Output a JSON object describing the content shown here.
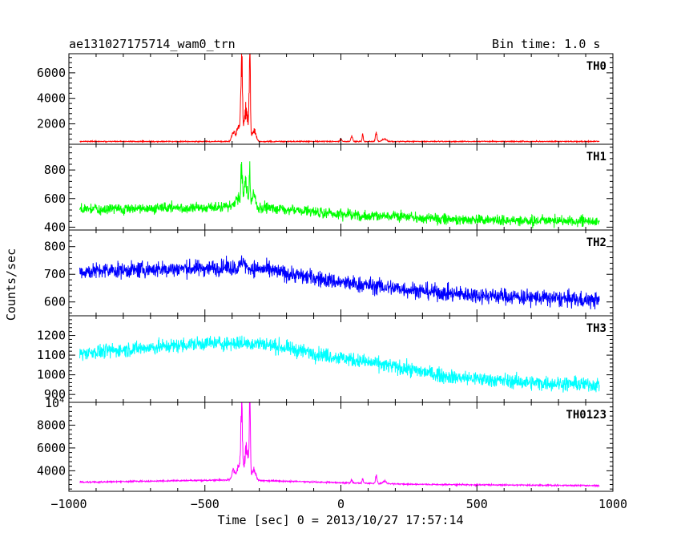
{
  "header": {
    "title": "ae131027175714_wam0_trn",
    "bin_time": "Bin time: 1.0 s"
  },
  "chart_data": {
    "type": "line",
    "title": "ae131027175714_wam0_trn",
    "xlabel": "Time [sec] 0 = 2013/10/27 17:57:14",
    "ylabel": "Counts/sec",
    "xlim": [
      -1000,
      1000
    ],
    "xticks": [
      -1000,
      -500,
      0,
      500,
      1000
    ],
    "x_tick_labels": [
      "−1000",
      "−500",
      "0",
      "500",
      "1000"
    ],
    "panels": [
      {
        "name": "TH0",
        "color": "#ff0000",
        "ylim": [
          400,
          7500
        ],
        "yticks": [
          2000,
          4000,
          6000
        ],
        "ytick_labels": [
          "2000",
          "4000",
          "6000"
        ],
        "baseline": [
          [
            -960,
            620
          ],
          [
            940,
            620
          ]
        ],
        "noise": 40,
        "bursts": [
          [
            -395,
            8,
            800
          ],
          [
            -375,
            10,
            1300
          ],
          [
            -365,
            4,
            6200
          ],
          [
            -348,
            10,
            2500
          ],
          [
            -335,
            3,
            6300
          ],
          [
            -320,
            10,
            900
          ],
          [
            0,
            4,
            200
          ],
          [
            40,
            4,
            400
          ],
          [
            80,
            3,
            500
          ],
          [
            130,
            4,
            700
          ],
          [
            160,
            10,
            200
          ]
        ],
        "xmin": -960,
        "xmax": 950,
        "ratio_noise": false
      },
      {
        "name": "TH1",
        "color": "#00ff00",
        "ylim": [
          380,
          980
        ],
        "yticks": [
          400,
          600,
          800
        ],
        "ytick_labels": [
          "400",
          "600",
          "800"
        ],
        "baseline": [
          [
            -960,
            520
          ],
          [
            -400,
            545
          ],
          [
            -300,
            540
          ],
          [
            0,
            490
          ],
          [
            400,
            455
          ],
          [
            940,
            440
          ]
        ],
        "noise": 35,
        "bursts": [
          [
            -380,
            10,
            60
          ],
          [
            -365,
            4,
            280
          ],
          [
            -350,
            8,
            180
          ],
          [
            -335,
            3,
            260
          ],
          [
            -320,
            8,
            80
          ]
        ],
        "xmin": -960,
        "xmax": 950,
        "ratio_noise": false
      },
      {
        "name": "TH2",
        "color": "#0000ff",
        "ylim": [
          550,
          860
        ],
        "yticks": [
          600,
          700,
          800
        ],
        "ytick_labels": [
          "600",
          "700",
          "800"
        ],
        "baseline": [
          [
            -960,
            710
          ],
          [
            -400,
            725
          ],
          [
            -300,
            720
          ],
          [
            0,
            670
          ],
          [
            400,
            630
          ],
          [
            940,
            605
          ]
        ],
        "noise": 28,
        "bursts": [
          [
            -360,
            8,
            30
          ]
        ],
        "xmin": -960,
        "xmax": 950,
        "ratio_noise": false
      },
      {
        "name": "TH3",
        "color": "#00ffff",
        "ylim": [
          860,
          1300
        ],
        "yticks": [
          900,
          1000,
          1100,
          1200
        ],
        "ytick_labels": [
          "900",
          "1000",
          "1100",
          "1200"
        ],
        "baseline": [
          [
            -960,
            1110
          ],
          [
            -500,
            1160
          ],
          [
            -300,
            1160
          ],
          [
            -100,
            1110
          ],
          [
            200,
            1040
          ],
          [
            400,
            990
          ],
          [
            700,
            960
          ],
          [
            940,
            950
          ]
        ],
        "noise": 35,
        "bursts": [],
        "xmin": -960,
        "xmax": 950,
        "ratio_noise": false
      },
      {
        "name": "TH0123",
        "color": "#ff00ff",
        "ylim": [
          2200,
          10000
        ],
        "yticks": [
          4000,
          6000,
          8000
        ],
        "ytick_labels": [
          "4000",
          "6000",
          "8000"
        ],
        "top_label_base": "10",
        "top_label_exp": "4",
        "baseline": [
          [
            -960,
            3000
          ],
          [
            -400,
            3200
          ],
          [
            -300,
            3150
          ],
          [
            0,
            2950
          ],
          [
            300,
            2800
          ],
          [
            940,
            2700
          ]
        ],
        "noise": 60,
        "bursts": [
          [
            -395,
            8,
            800
          ],
          [
            -375,
            10,
            1400
          ],
          [
            -365,
            4,
            6300
          ],
          [
            -348,
            10,
            2600
          ],
          [
            -335,
            3,
            6400
          ],
          [
            -320,
            10,
            900
          ],
          [
            40,
            4,
            300
          ],
          [
            80,
            3,
            400
          ],
          [
            130,
            4,
            700
          ],
          [
            160,
            10,
            200
          ]
        ],
        "xmin": -960,
        "xmax": 950,
        "ratio_noise": false
      }
    ],
    "grid": false
  }
}
